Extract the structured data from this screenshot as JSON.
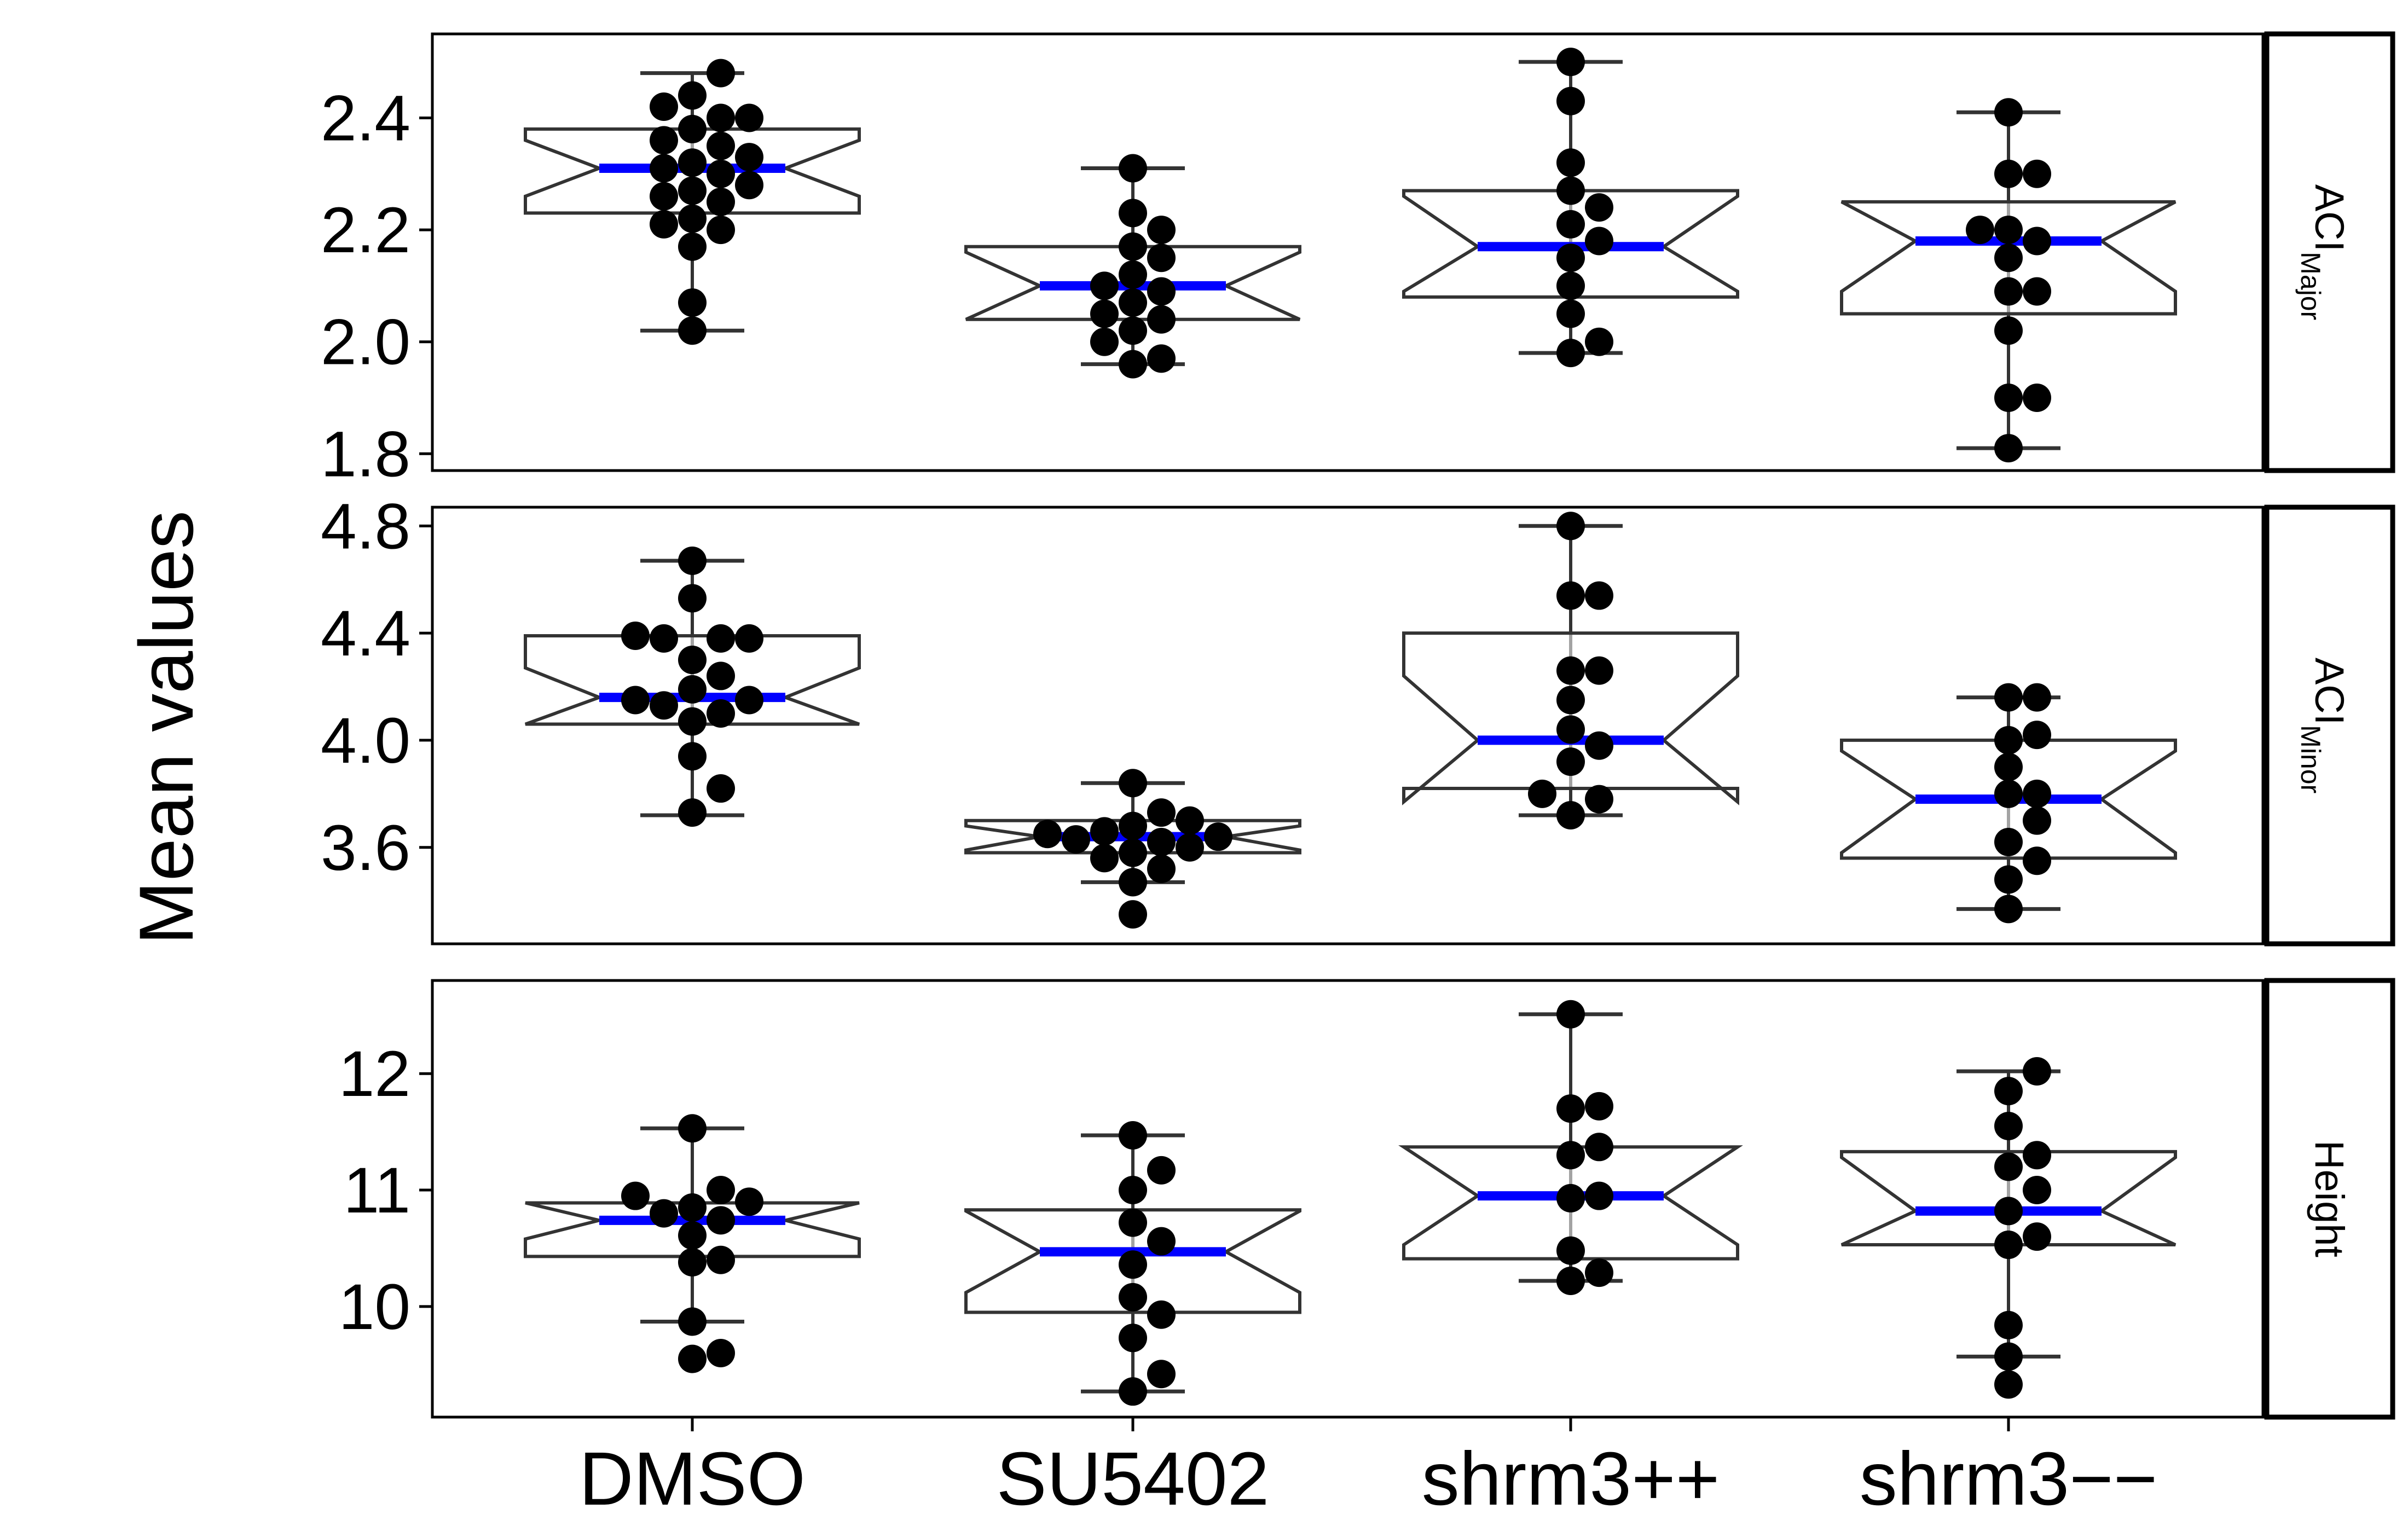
{
  "chart_data": {
    "type": "box",
    "ylabel": "Mean values",
    "categories": [
      "DMSO",
      "SU5402",
      "shrm3++",
      "shrm3−−"
    ],
    "colors": {
      "median": "#0000ff",
      "box": "#333333",
      "points": "#000000",
      "outlier": "#ff0000"
    },
    "panels": [
      {
        "strip": "ACI",
        "strip_sub": "Major",
        "ylim": [
          1.77,
          2.55
        ],
        "yticks": [
          1.8,
          2.0,
          2.2,
          2.4
        ],
        "ytick_labels": [
          "1.8",
          "2.0",
          "2.2",
          "2.4"
        ],
        "boxes": [
          {
            "q1": 2.23,
            "median": 2.31,
            "q3": 2.38,
            "lo": 2.02,
            "hi": 2.48,
            "notch_lo": 2.26,
            "notch_hi": 2.36,
            "points": [
              2.02,
              2.07,
              2.17,
              2.2,
              2.21,
              2.22,
              2.25,
              2.26,
              2.27,
              2.28,
              2.3,
              2.31,
              2.32,
              2.33,
              2.35,
              2.36,
              2.38,
              2.4,
              2.4,
              2.42,
              2.44,
              2.48
            ]
          },
          {
            "q1": 2.04,
            "median": 2.1,
            "q3": 2.17,
            "lo": 1.96,
            "hi": 2.31,
            "notch_lo": 2.04,
            "notch_hi": 2.16,
            "points": [
              1.96,
              1.97,
              2.0,
              2.02,
              2.04,
              2.05,
              2.07,
              2.09,
              2.1,
              2.12,
              2.15,
              2.17,
              2.2,
              2.23,
              2.31
            ]
          },
          {
            "q1": 2.08,
            "median": 2.17,
            "q3": 2.27,
            "lo": 1.98,
            "hi": 2.5,
            "notch_lo": 2.09,
            "notch_hi": 2.26,
            "points": [
              1.98,
              2.0,
              2.05,
              2.1,
              2.15,
              2.18,
              2.21,
              2.24,
              2.27,
              2.32,
              2.43,
              2.5
            ]
          },
          {
            "q1": 2.05,
            "median": 2.18,
            "q3": 2.25,
            "lo": 1.81,
            "hi": 2.41,
            "notch_lo": 2.09,
            "notch_hi": 2.25,
            "points": [
              1.81,
              1.9,
              1.9,
              2.02,
              2.09,
              2.09,
              2.15,
              2.18,
              2.2,
              2.2,
              2.3,
              2.3,
              2.41
            ]
          }
        ]
      },
      {
        "strip": "ACI",
        "strip_sub": "Minor",
        "ylim": [
          3.24,
          4.87
        ],
        "yticks": [
          3.6,
          4.0,
          4.4,
          4.8
        ],
        "ytick_labels": [
          "3.6",
          "4.0",
          "4.4",
          "4.8"
        ],
        "boxes": [
          {
            "q1": 4.06,
            "median": 4.16,
            "q3": 4.39,
            "lo": 3.72,
            "hi": 4.67,
            "notch_lo": 4.06,
            "notch_hi": 4.27,
            "points": [
              3.73,
              3.82,
              3.94,
              4.07,
              4.1,
              4.13,
              4.15,
              4.15,
              4.19,
              4.24,
              4.3,
              4.38,
              4.38,
              4.38,
              4.39,
              4.53,
              4.67
            ]
          },
          {
            "q1": 3.58,
            "median": 3.64,
            "q3": 3.7,
            "lo": 3.47,
            "hi": 3.84,
            "notch_lo": 3.59,
            "notch_hi": 3.68,
            "points": [
              3.35,
              3.47,
              3.52,
              3.56,
              3.58,
              3.6,
              3.62,
              3.63,
              3.64,
              3.65,
              3.66,
              3.68,
              3.7,
              3.73,
              3.84
            ]
          },
          {
            "q1": 3.82,
            "median": 4.0,
            "q3": 4.4,
            "lo": 3.72,
            "hi": 4.8,
            "notch_lo": 3.77,
            "notch_hi": 4.24,
            "points": [
              3.72,
              3.78,
              3.8,
              3.92,
              3.98,
              4.04,
              4.15,
              4.26,
              4.26,
              4.54,
              4.54,
              4.8
            ]
          },
          {
            "q1": 3.56,
            "median": 3.78,
            "q3": 4.0,
            "lo": 3.37,
            "hi": 4.16,
            "notch_lo": 3.58,
            "notch_hi": 3.96,
            "points": [
              3.37,
              3.48,
              3.55,
              3.62,
              3.7,
              3.8,
              3.8,
              3.9,
              4.0,
              4.02,
              4.16,
              4.16
            ]
          }
        ]
      },
      {
        "strip": "Height",
        "strip_sub": "",
        "ylim": [
          9.05,
          12.8
        ],
        "yticks": [
          10,
          11,
          12
        ],
        "ytick_labels": [
          "10",
          "11",
          "12"
        ],
        "boxes": [
          {
            "q1": 10.43,
            "median": 10.74,
            "q3": 10.89,
            "lo": 9.87,
            "hi": 11.53,
            "notch_lo": 10.58,
            "notch_hi": 10.89,
            "points": [
              9.55,
              9.6,
              9.87,
              10.38,
              10.4,
              10.61,
              10.74,
              10.8,
              10.85,
              10.9,
              10.95,
              11.0,
              11.53
            ]
          },
          {
            "q1": 9.95,
            "median": 10.47,
            "q3": 10.83,
            "lo": 9.27,
            "hi": 11.47,
            "notch_lo": 10.12,
            "notch_hi": 10.82,
            "points": [
              9.27,
              9.42,
              9.73,
              9.93,
              10.08,
              10.36,
              10.56,
              10.72,
              11.0,
              11.17,
              11.47
            ]
          },
          {
            "q1": 10.41,
            "median": 10.95,
            "q3": 11.37,
            "lo": 10.22,
            "hi": 12.51,
            "notch_lo": 10.53,
            "notch_hi": 11.37,
            "points": [
              10.22,
              10.29,
              10.48,
              10.93,
              10.95,
              11.3,
              11.37,
              11.7,
              11.72,
              12.51
            ]
          },
          {
            "q1": 10.53,
            "median": 10.82,
            "q3": 11.33,
            "lo": 9.57,
            "hi": 12.02,
            "notch_lo": 10.53,
            "notch_hi": 11.28,
            "points": [
              9.33,
              9.57,
              9.84,
              10.53,
              10.6,
              10.82,
              11.0,
              11.2,
              11.3,
              11.55,
              11.85,
              12.02
            ]
          }
        ]
      }
    ]
  }
}
